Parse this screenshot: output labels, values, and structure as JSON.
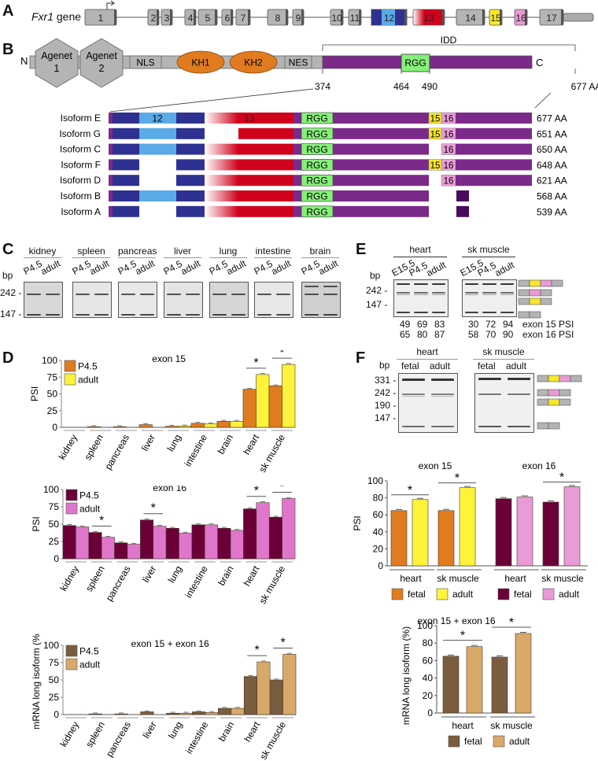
{
  "panels": {
    "A": "A",
    "B": "B",
    "C": "C",
    "D": "D",
    "E": "E",
    "F": "F"
  },
  "panel_a": {
    "gene_label_italic": "Fxr1",
    "gene_label_rest": " gene",
    "exons": [
      {
        "label": "1",
        "color": "#b4b4b4"
      },
      {
        "label": "2",
        "color": "#b4b4b4"
      },
      {
        "label": "3",
        "color": "#b4b4b4"
      },
      {
        "label": "4",
        "color": "#b4b4b4"
      },
      {
        "label": "5",
        "color": "#b4b4b4"
      },
      {
        "label": "6",
        "color": "#b4b4b4"
      },
      {
        "label": "7",
        "color": "#b4b4b4"
      },
      {
        "label": "8",
        "color": "#b4b4b4"
      },
      {
        "label": "9",
        "color": "#b4b4b4"
      },
      {
        "label": "10",
        "color": "#b4b4b4"
      },
      {
        "label": "11",
        "color": "#b4b4b4"
      },
      {
        "label": "12",
        "color": "#5aaae8"
      },
      {
        "label": "13",
        "color": "#d0021b"
      },
      {
        "label": "14",
        "color": "#b4b4b4"
      },
      {
        "label": "15",
        "color": "#f5e82a"
      },
      {
        "label": "16",
        "color": "#e99bd6"
      },
      {
        "label": "17",
        "color": "#b4b4b4"
      }
    ]
  },
  "panel_b": {
    "n_label": "N",
    "c_label": "C",
    "domains": [
      "Agenet\n1",
      "Agenet\n2",
      "NLS",
      "KH1",
      "KH2",
      "NES",
      "RGG"
    ],
    "agenet1_l1": "Agenet",
    "agenet1_l2": "1",
    "agenet2_l1": "Agenet",
    "agenet2_l2": "2",
    "nls": "NLS",
    "kh1": "KH1",
    "kh2": "KH2",
    "nes": "NES",
    "rgg": "RGG",
    "idd": "IDD",
    "positions": [
      "374",
      "464",
      "490",
      "677 AA"
    ],
    "isoforms": [
      {
        "name": "Isoform E",
        "length": "677 AA",
        "ex12": true,
        "ex13": true,
        "ex13_gradient": true,
        "ex15": true,
        "ex16": true,
        "tail": "full"
      },
      {
        "name": "Isoform G",
        "length": "651 AA",
        "ex12": true,
        "ex13": true,
        "ex13_gradient": false,
        "ex15": true,
        "ex16": true,
        "tail": "full"
      },
      {
        "name": "Isoform C",
        "length": "650 AA",
        "ex12": true,
        "ex13": true,
        "ex13_gradient": true,
        "ex15": false,
        "ex16": true,
        "tail": "full"
      },
      {
        "name": "Isoform F",
        "length": "648 AA",
        "ex12": false,
        "ex13": true,
        "ex13_gradient": true,
        "ex15": true,
        "ex16": true,
        "tail": "full"
      },
      {
        "name": "Isoform D",
        "length": "621 AA",
        "ex12": false,
        "ex13": true,
        "ex13_gradient": true,
        "ex15": false,
        "ex16": true,
        "tail": "full"
      },
      {
        "name": "Isoform B",
        "length": "568 AA",
        "ex12": true,
        "ex13": true,
        "ex13_gradient": true,
        "ex15": false,
        "ex16": false,
        "tail": "short"
      },
      {
        "name": "Isoform A",
        "length": "539 AA",
        "ex12": false,
        "ex13": true,
        "ex13_gradient": true,
        "ex15": false,
        "ex16": false,
        "tail": "short"
      }
    ],
    "exon12_label": "12",
    "exon13_label": "13",
    "exon15_label": "15",
    "exon16_label": "16"
  },
  "panel_c": {
    "bp_label": "bp",
    "markers": [
      "242 -",
      "147 -"
    ],
    "lane_labels": [
      "P4.5",
      "adult"
    ],
    "tissues": [
      "kidney",
      "spleen",
      "pancreas",
      "liver",
      "lung",
      "intestine",
      "brain"
    ]
  },
  "panel_e": {
    "bp_label": "bp",
    "markers": [
      "242 -",
      "147 -"
    ],
    "groups": [
      {
        "tissue": "heart",
        "lanes": [
          "E15.5",
          "P4.5",
          "adult"
        ],
        "exon15_psi": [
          "49",
          "69",
          "83"
        ],
        "exon16_psi": [
          "65",
          "80",
          "87"
        ]
      },
      {
        "tissue": "sk muscle",
        "lanes": [
          "E15.5",
          "P4.5",
          "adult"
        ],
        "exon15_psi": [
          "30",
          "72",
          "94"
        ],
        "exon16_psi": [
          "58",
          "70",
          "90"
        ]
      }
    ],
    "row_label_15": "exon 15 PSI",
    "row_label_16": "exon 16 PSI"
  },
  "panel_f_gel": {
    "bp_label": "bp",
    "markers": [
      "331 -",
      "242 -",
      "190 -",
      "147 -"
    ],
    "groups": [
      {
        "tissue": "heart",
        "lanes": [
          "fetal",
          "adult"
        ]
      },
      {
        "tissue": "sk muscle",
        "lanes": [
          "fetal",
          "adult"
        ]
      }
    ]
  },
  "chart_data": [
    {
      "id": "D1",
      "type": "bar",
      "title": "exon 15",
      "ylabel": "PSI",
      "ylim": [
        0,
        100
      ],
      "yticks": [
        "0",
        "25",
        "50",
        "75",
        "100"
      ],
      "categories": [
        "kidney",
        "spleen",
        "pancreas",
        "liver",
        "lung",
        "intestine",
        "brain",
        "heart",
        "sk muscle"
      ],
      "series": [
        {
          "name": "P4.5",
          "color": "#e07b20",
          "values": [
            0,
            1,
            1,
            4,
            1.5,
            6,
            9,
            57,
            62
          ]
        },
        {
          "name": "adult",
          "color": "#fff23a",
          "values": [
            0,
            0,
            0,
            0,
            2,
            5,
            9,
            79,
            94
          ]
        }
      ],
      "significant": [
        "heart",
        "sk muscle"
      ],
      "legend": "top-left"
    },
    {
      "id": "D2",
      "type": "bar",
      "title": "exon 16",
      "ylabel": "PSI",
      "ylim": [
        0,
        100
      ],
      "yticks": [
        "0",
        "25",
        "50",
        "75",
        "100"
      ],
      "categories": [
        "kidney",
        "spleen",
        "pancreas",
        "liver",
        "lung",
        "intestine",
        "brain",
        "heart",
        "sk muscle"
      ],
      "series": [
        {
          "name": "P4.5",
          "color": "#6b0039",
          "values": [
            48,
            38,
            23,
            56,
            44,
            49,
            44,
            72,
            60
          ]
        },
        {
          "name": "adult",
          "color": "#e076cc",
          "values": [
            46,
            31,
            21,
            47,
            37,
            49,
            41,
            81,
            87
          ]
        }
      ],
      "significant": [
        "spleen",
        "liver",
        "heart",
        "sk muscle"
      ],
      "legend": "top-left"
    },
    {
      "id": "D3",
      "type": "bar",
      "title": "exon 15 + exon 16",
      "ylabel": "mRNA long isoform (%)",
      "ylim": [
        0,
        100
      ],
      "yticks": [
        "0",
        "25",
        "50",
        "75",
        "100"
      ],
      "categories": [
        "kidney",
        "spleen",
        "pancreas",
        "liver",
        "lung",
        "intestine",
        "brain",
        "heart",
        "sk muscle"
      ],
      "series": [
        {
          "name": "P4.5",
          "color": "#7a5c3e",
          "values": [
            0,
            1,
            1,
            4,
            2,
            4,
            9,
            55,
            50
          ]
        },
        {
          "name": "adult",
          "color": "#d9a96a",
          "values": [
            0,
            0,
            0,
            0,
            2,
            3,
            9,
            76,
            87
          ]
        }
      ],
      "significant": [
        "heart",
        "sk muscle"
      ],
      "legend": "top-left"
    },
    {
      "id": "F1",
      "type": "bar",
      "ylabel": "PSI",
      "ylim": [
        0,
        100
      ],
      "yticks": [
        "0",
        "20",
        "40",
        "60",
        "80",
        "100"
      ],
      "groups": [
        {
          "title": "exon 15",
          "categories": [
            "heart",
            "sk muscle"
          ],
          "series": [
            {
              "name": "fetal",
              "color": "#e07b20",
              "values": [
                65,
                65
              ]
            },
            {
              "name": "adult",
              "color": "#fff23a",
              "values": [
                78,
                92
              ]
            }
          ],
          "significant": [
            "heart",
            "sk muscle"
          ]
        },
        {
          "title": "exon 16",
          "categories": [
            "heart",
            "sk muscle"
          ],
          "series": [
            {
              "name": "fetal",
              "color": "#6b0039",
              "values": [
                79,
                75
              ]
            },
            {
              "name": "adult",
              "color": "#e99bd6",
              "values": [
                81,
                93
              ]
            }
          ],
          "significant": [
            "sk muscle"
          ]
        }
      ],
      "legend": "bottom"
    },
    {
      "id": "F2",
      "type": "bar",
      "title": "exon 15 + exon 16",
      "ylabel": "mRNA long isoform (%)",
      "ylim": [
        0,
        100
      ],
      "yticks": [
        "0",
        "20",
        "40",
        "60",
        "80",
        "100"
      ],
      "categories": [
        "heart",
        "sk muscle"
      ],
      "series": [
        {
          "name": "fetal",
          "color": "#7a5c3e",
          "values": [
            65,
            64
          ]
        },
        {
          "name": "adult",
          "color": "#d9a96a",
          "values": [
            76,
            91
          ]
        }
      ],
      "significant": [
        "heart",
        "sk muscle"
      ],
      "legend": "bottom"
    }
  ]
}
